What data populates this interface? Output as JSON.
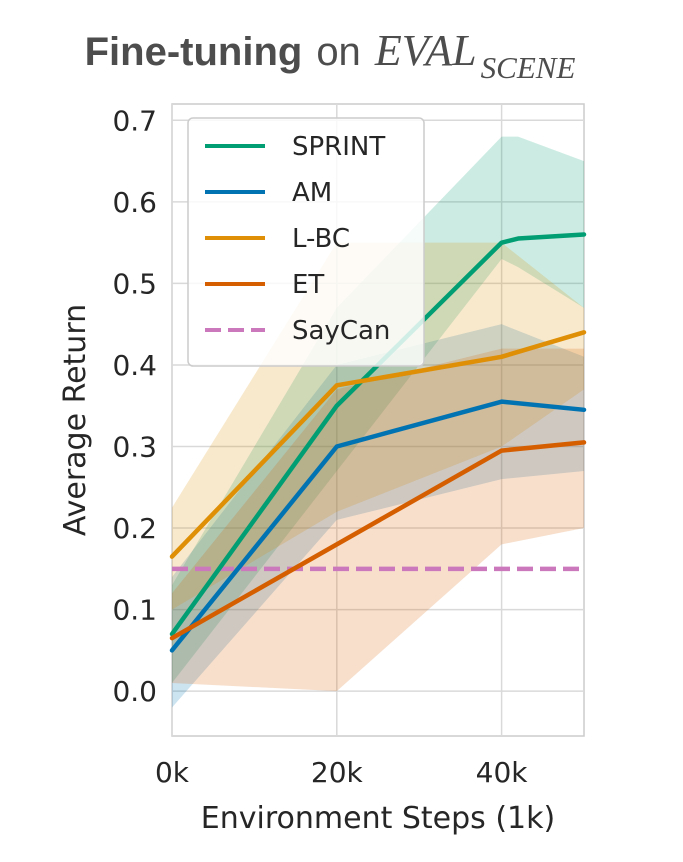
{
  "chart_data": {
    "type": "line",
    "title": {
      "bold": "Fine-tuning",
      "normal": "on",
      "math": "EVAL",
      "subscript": "SCENE"
    },
    "xlabel": "Environment Steps (1k)",
    "ylabel": "Average Return",
    "xlim": [
      0,
      50
    ],
    "ylim": [
      -0.055,
      0.72
    ],
    "xticks": [
      0,
      20,
      40
    ],
    "xtick_labels": [
      "0k",
      "20k",
      "40k"
    ],
    "yticks": [
      0.0,
      0.1,
      0.2,
      0.3,
      0.4,
      0.5,
      0.6,
      0.7
    ],
    "ytick_labels": [
      "0.0",
      "0.1",
      "0.2",
      "0.3",
      "0.4",
      "0.5",
      "0.6",
      "0.7"
    ],
    "grid": true,
    "legend_position": "top-left",
    "series": [
      {
        "name": "SPRINT",
        "color": "#029e73",
        "x": [
          0,
          20,
          40,
          42,
          50
        ],
        "values": [
          0.07,
          0.35,
          0.55,
          0.555,
          0.56
        ],
        "upper": [
          0.13,
          0.47,
          0.68,
          0.68,
          0.65
        ],
        "lower": [
          0.01,
          0.27,
          0.53,
          0.52,
          0.47
        ]
      },
      {
        "name": "AM",
        "color": "#0173b2",
        "x": [
          0,
          20,
          40,
          50
        ],
        "values": [
          0.05,
          0.3,
          0.355,
          0.345
        ],
        "upper": [
          0.14,
          0.4,
          0.45,
          0.41
        ],
        "lower": [
          -0.02,
          0.21,
          0.26,
          0.27
        ]
      },
      {
        "name": "L-BC",
        "color": "#de8f05",
        "x": [
          0,
          20,
          40,
          50
        ],
        "values": [
          0.165,
          0.375,
          0.41,
          0.44
        ],
        "upper": [
          0.225,
          0.55,
          0.55,
          0.47
        ],
        "lower": [
          0.1,
          0.22,
          0.3,
          0.37
        ]
      },
      {
        "name": "ET",
        "color": "#d55e00",
        "x": [
          0,
          20,
          40,
          50
        ],
        "values": [
          0.065,
          0.18,
          0.295,
          0.305
        ],
        "upper": [
          0.12,
          0.37,
          0.42,
          0.42
        ],
        "lower": [
          0.01,
          0.0,
          0.18,
          0.2
        ]
      },
      {
        "name": "SayCan",
        "color": "#cc78bc",
        "dashed": true,
        "x": [
          0,
          50
        ],
        "values": [
          0.15,
          0.15
        ]
      }
    ]
  }
}
